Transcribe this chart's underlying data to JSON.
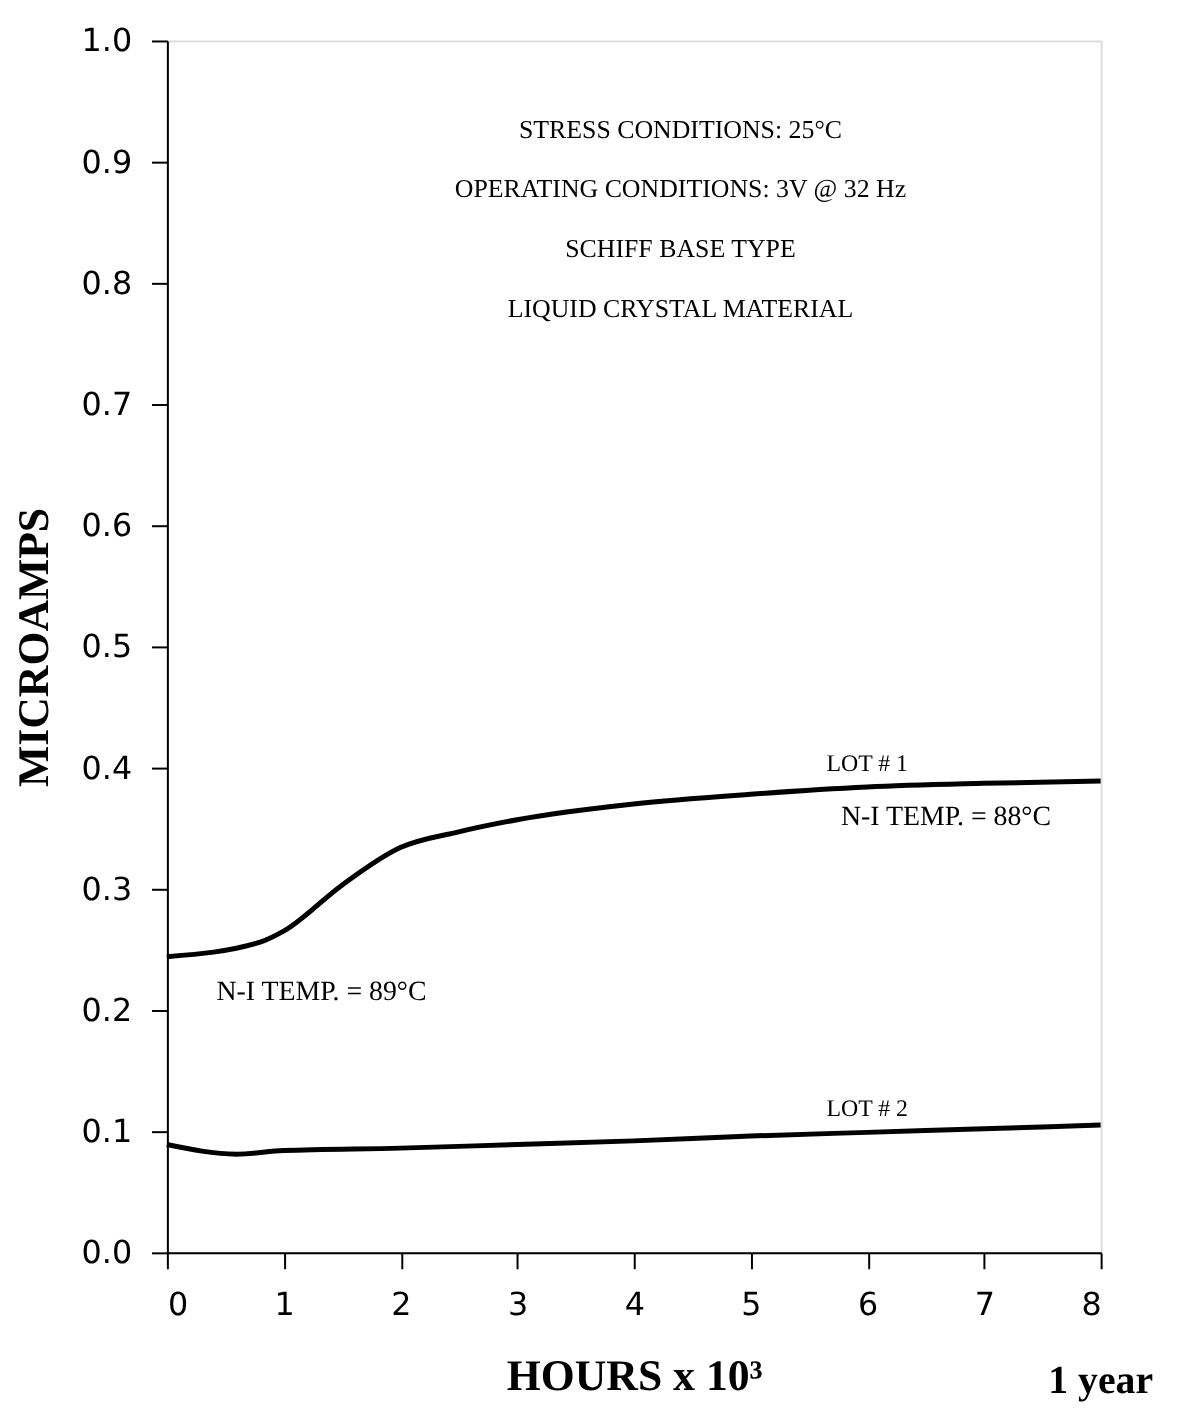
{
  "chart_data": {
    "type": "line",
    "xlabel": "HOURS x 10³",
    "ylabel": "MICROAMPS",
    "xlim": [
      0,
      8
    ],
    "xticks": [
      0,
      1,
      2,
      3,
      4,
      5,
      6,
      7,
      8
    ],
    "ylim": [
      0,
      1.0
    ],
    "yticks": [
      {
        "value": 0,
        "label": "0.0"
      },
      0.1,
      0.2,
      0.3,
      0.4,
      0.5,
      0.6,
      0.7,
      0.8,
      0.9,
      {
        "value": 1,
        "label": "1.0"
      }
    ],
    "grid": false,
    "legend": false,
    "marker": "none",
    "line_style": "solid",
    "series": [
      {
        "name": "LOT # 1",
        "color": "#000000",
        "x": [
          0,
          0.8,
          1,
          1.5,
          2,
          2.5,
          3,
          4,
          5,
          6,
          7,
          8
        ],
        "values": [
          0.244,
          0.256,
          0.265,
          0.303,
          0.334,
          0.347,
          0.357,
          0.37,
          0.378,
          0.384,
          0.387,
          0.389
        ]
      },
      {
        "name": "LOT # 2",
        "color": "#000000",
        "x": [
          0,
          0.6,
          1,
          2,
          3,
          4,
          5,
          6,
          7,
          8
        ],
        "values": [
          0.089,
          0.081,
          0.084,
          0.086,
          0.089,
          0.092,
          0.096,
          0.099,
          0.102,
          0.105
        ]
      }
    ],
    "annotations": [
      "STRESS CONDITIONS:      25°C",
      "OPERATING CONDITIONS:  3V @ 32 Hz",
      "SCHIFF BASE TYPE",
      "LIQUID CRYSTAL MATERIAL",
      {
        "text": "N-I TEMP. = 89°C",
        "x": 0,
        "y": 0.244
      },
      {
        "text": "N-I TEMP. = 88°C",
        "x": 8,
        "y": 0.389
      },
      "1 year"
    ]
  }
}
